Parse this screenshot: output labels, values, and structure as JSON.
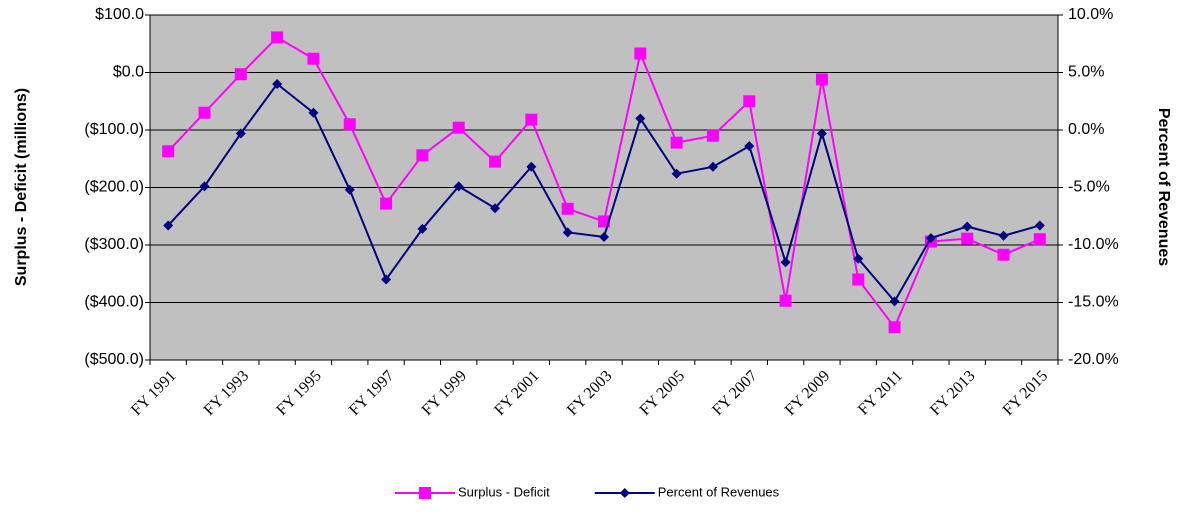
{
  "chart_data": {
    "type": "line",
    "y_label": "Surplus - Deficit (millions)",
    "y2_label": "Percent of Revenues",
    "categories": [
      "FY 1991",
      null,
      "FY 1993",
      null,
      "FY 1995",
      null,
      "FY 1997",
      null,
      "FY 1999",
      null,
      "FY 2001",
      null,
      "FY 2003",
      null,
      "FY 2005",
      null,
      "FY 2007",
      null,
      "FY 2009",
      null,
      "FY 2011",
      null,
      "FY 2013",
      null,
      "FY 2015"
    ],
    "series": [
      {
        "name": "Surplus - Deficit",
        "color": "#ff00ff",
        "marker": "square",
        "values": [
          -137,
          -70,
          -3,
          61,
          24,
          -90,
          -228,
          -144,
          -96,
          -155,
          -82,
          -237,
          -259,
          33,
          -122,
          -110,
          -50,
          -397,
          -12,
          -360,
          -443,
          -294,
          -289,
          -317,
          -290
        ]
      },
      {
        "name": "Percent of Revenues",
        "color": "#000080",
        "marker": "diamond",
        "axis": "y2",
        "values": [
          -8.3,
          -4.9,
          -0.3,
          4.0,
          1.5,
          -5.2,
          -13.0,
          -8.6,
          -4.9,
          -6.8,
          -3.2,
          -8.9,
          -9.3,
          1.0,
          -3.8,
          -3.2,
          -1.4,
          -11.5,
          -0.3,
          -11.2,
          -14.9,
          -9.4,
          -8.4,
          -9.2,
          -8.3
        ]
      }
    ],
    "ylim": [
      -500,
      100
    ],
    "yticks": [
      {
        "value": -500,
        "label": "($500.0)"
      },
      {
        "value": -400,
        "label": "($400.0)"
      },
      {
        "value": -300,
        "label": "($300.0)"
      },
      {
        "value": -200,
        "label": "($200.0)"
      },
      {
        "value": -100,
        "label": "($100.0)"
      },
      {
        "value": 0,
        "label": "$0.0"
      },
      {
        "value": 100,
        "label": "$100.0"
      }
    ],
    "y2lim": [
      -20,
      10
    ],
    "y2ticks": [
      {
        "value": -20,
        "label": "-20.0%"
      },
      {
        "value": -15,
        "label": "-15.0%"
      },
      {
        "value": -10,
        "label": "-10.0%"
      },
      {
        "value": -5,
        "label": "-5.0%"
      },
      {
        "value": 0,
        "label": "0.0%"
      },
      {
        "value": 5,
        "label": "5.0%"
      },
      {
        "value": 10,
        "label": "10.0%"
      }
    ],
    "negative_tick_color": "#ff0000",
    "plot_background": "#c0c0c0",
    "grid": true,
    "legend": "bottom"
  }
}
